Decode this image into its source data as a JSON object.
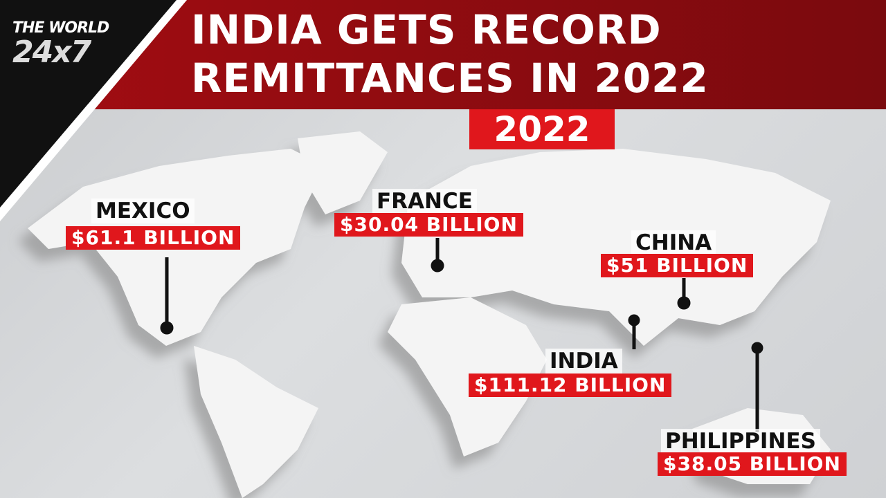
{
  "logo": {
    "line1": "THE WORLD",
    "line2": "24x7"
  },
  "header": {
    "title_lines": [
      "INDIA GETS RECORD",
      "REMITTANCES IN 2022"
    ]
  },
  "year": "2022",
  "callouts": [
    {
      "country": "MEXICO",
      "amount": "$61.1 BILLION"
    },
    {
      "country": "FRANCE",
      "amount": "$30.04 BILLION"
    },
    {
      "country": "CHINA",
      "amount": "$51 BILLION"
    },
    {
      "country": "INDIA",
      "amount": "$111.12 BILLION"
    },
    {
      "country": "PHILIPPINES",
      "amount": "$38.05 BILLION"
    }
  ]
}
